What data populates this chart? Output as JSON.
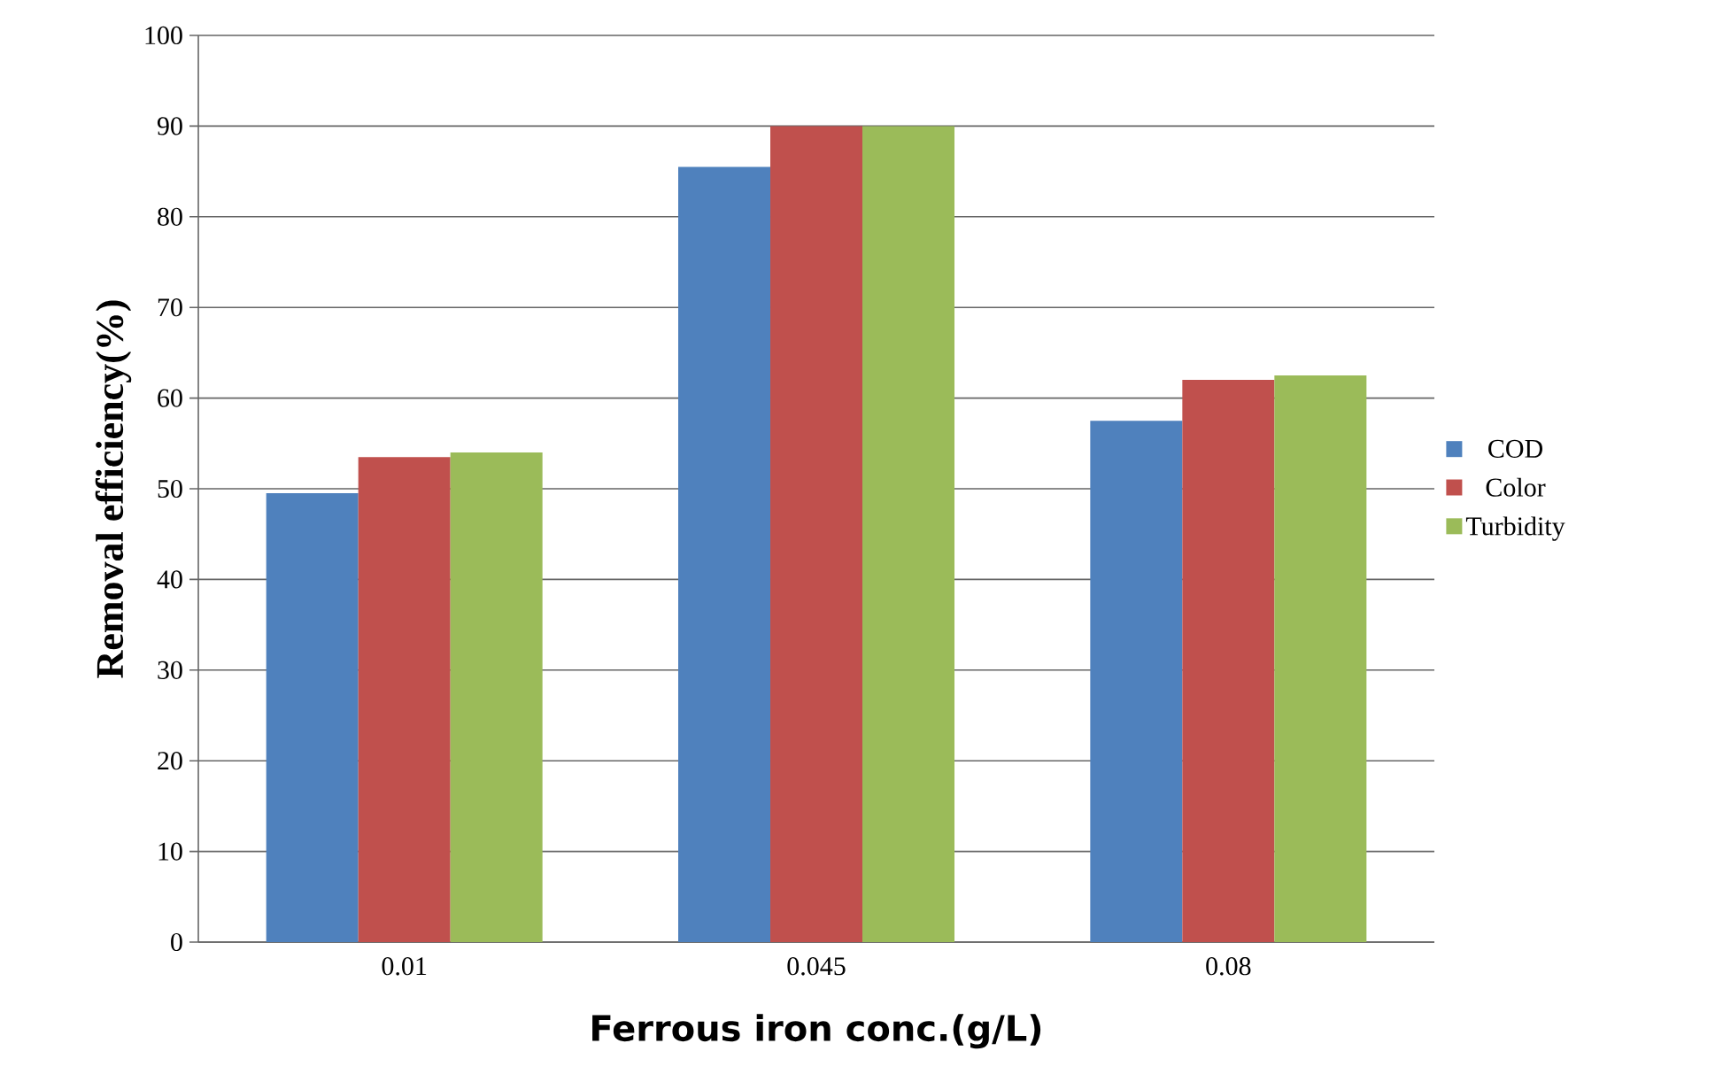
{
  "chart_data": {
    "type": "bar",
    "xlabel": "Ferrous iron conc.(g/L)",
    "ylabel": "Removal  efficiency(%)",
    "categories": [
      "0.01",
      "0.045",
      "0.08"
    ],
    "series": [
      {
        "name": "COD",
        "color": "#4f81bd",
        "values": [
          49.5,
          85.5,
          57.5
        ]
      },
      {
        "name": "Color",
        "color": "#c0504d",
        "values": [
          53.5,
          90,
          62
        ]
      },
      {
        "name": "Turbidity",
        "color": "#9bbb59",
        "values": [
          54,
          90,
          62.5
        ]
      }
    ],
    "ylim": [
      0,
      100
    ],
    "yticks": [
      0,
      10,
      20,
      30,
      40,
      50,
      60,
      70,
      80,
      90,
      100
    ],
    "grid": "y",
    "legend": "right"
  }
}
